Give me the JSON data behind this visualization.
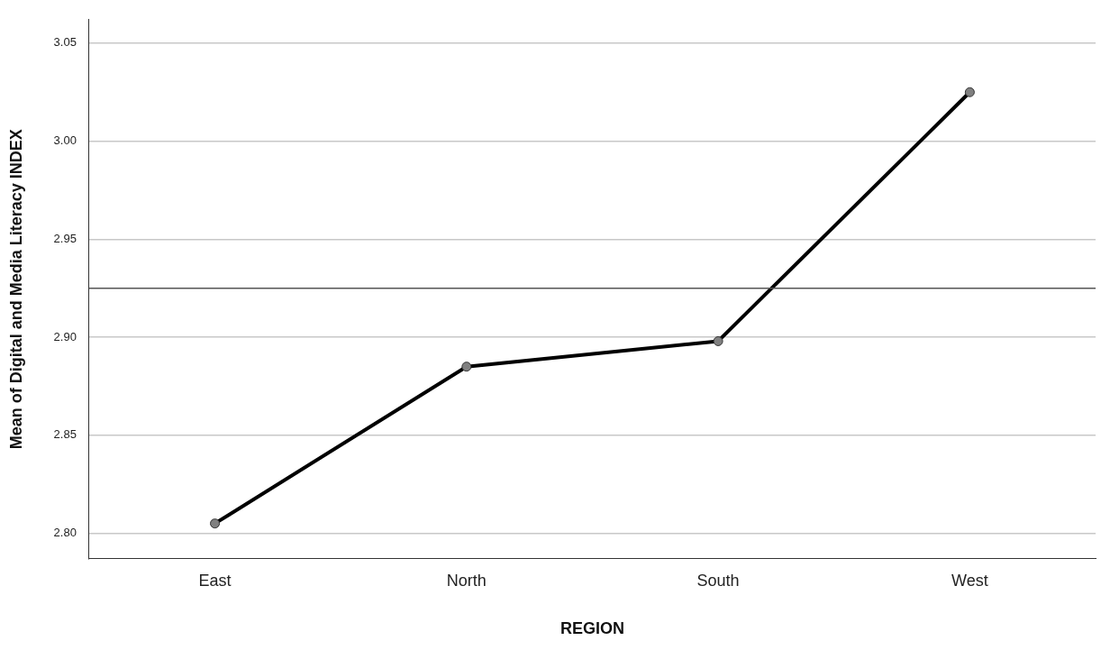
{
  "chart_data": {
    "type": "line",
    "xlabel": "REGION",
    "ylabel": "Mean of Digital and Media Literacy INDEX",
    "categories": [
      "East",
      "North",
      "South",
      "West"
    ],
    "series": [
      {
        "color": "#000000",
        "values": [
          2.805,
          2.885,
          2.898,
          3.025
        ]
      }
    ],
    "ylim": [
      2.787,
      3.062
    ],
    "yticks": [
      {
        "value": 2.8,
        "label": "2.80"
      },
      {
        "value": 2.85,
        "label": "2.85"
      },
      {
        "value": 2.9,
        "label": "2.90"
      },
      {
        "value": 2.95,
        "label": "2.95"
      },
      {
        "value": 3.0,
        "label": "3.00"
      },
      {
        "value": 3.05,
        "label": "3.05"
      }
    ],
    "ref_lines": [
      {
        "axis": "y",
        "value": 2.925,
        "color": "#555555"
      }
    ],
    "grid": "y",
    "legend": false,
    "marker": "circle",
    "line_style": "solid"
  }
}
